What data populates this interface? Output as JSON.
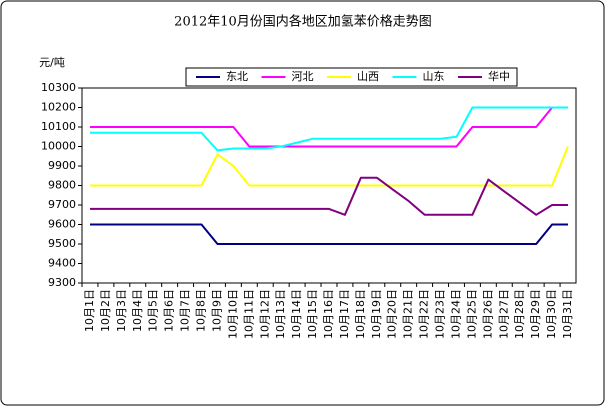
{
  "chart_data": {
    "type": "line",
    "title": "2012年10月份国内各地区加氢苯价格走势图",
    "y_label": "元/吨",
    "categories": [
      "10月1日",
      "10月2日",
      "10月3日",
      "10月4日",
      "10月5日",
      "10月6日",
      "10月7日",
      "10月8日",
      "10月9日",
      "10月10日",
      "10月11日",
      "10月12日",
      "10月13日",
      "10月14日",
      "10月15日",
      "10月16日",
      "10月17日",
      "10月18日",
      "10月19日",
      "10月20日",
      "10月21日",
      "10月22日",
      "10月23日",
      "10月24日",
      "10月25日",
      "10月26日",
      "10月27日",
      "10月28日",
      "10月29日",
      "10月30日",
      "10月31日"
    ],
    "series": [
      {
        "name": "东北",
        "color": "#000080",
        "values": [
          9600,
          9600,
          9600,
          9600,
          9600,
          9600,
          9600,
          9600,
          9500,
          9500,
          9500,
          9500,
          9500,
          9500,
          9500,
          9500,
          9500,
          9500,
          9500,
          9500,
          9500,
          9500,
          9500,
          9500,
          9500,
          9500,
          9500,
          9500,
          9500,
          9600,
          9600
        ]
      },
      {
        "name": "河北",
        "color": "#ff00ff",
        "values": [
          10100,
          10100,
          10100,
          10100,
          10100,
          10100,
          10100,
          10100,
          10100,
          10100,
          10000,
          10000,
          10000,
          10000,
          10000,
          10000,
          10000,
          10000,
          10000,
          10000,
          10000,
          10000,
          10000,
          10000,
          10100,
          10100,
          10100,
          10100,
          10100,
          10200,
          10200
        ]
      },
      {
        "name": "山西",
        "color": "#ffff00",
        "values": [
          9800,
          9800,
          9800,
          9800,
          9800,
          9800,
          9800,
          9800,
          9960,
          9900,
          9800,
          9800,
          9800,
          9800,
          9800,
          9800,
          9800,
          9800,
          9800,
          9800,
          9800,
          9800,
          9800,
          9800,
          9800,
          9800,
          9800,
          9800,
          9800,
          9800,
          10000
        ]
      },
      {
        "name": "山东",
        "color": "#00ffff",
        "values": [
          10070,
          10070,
          10070,
          10070,
          10070,
          10070,
          10070,
          10070,
          9980,
          9990,
          9990,
          9990,
          10000,
          10020,
          10040,
          10040,
          10040,
          10040,
          10040,
          10040,
          10040,
          10040,
          10040,
          10050,
          10200,
          10200,
          10200,
          10200,
          10200,
          10200,
          10200
        ]
      },
      {
        "name": "华中",
        "color": "#800080",
        "values": [
          9680,
          9680,
          9680,
          9680,
          9680,
          9680,
          9680,
          9680,
          9680,
          9680,
          9680,
          9680,
          9680,
          9680,
          9680,
          9680,
          9650,
          9840,
          9840,
          9780,
          9720,
          9650,
          9650,
          9650,
          9650,
          9830,
          9770,
          9710,
          9650,
          9700,
          9700
        ]
      }
    ],
    "ylim": [
      9300,
      10300
    ],
    "yticks": [
      9300,
      9400,
      9500,
      9600,
      9700,
      9800,
      9900,
      10000,
      10100,
      10200,
      10300
    ]
  }
}
